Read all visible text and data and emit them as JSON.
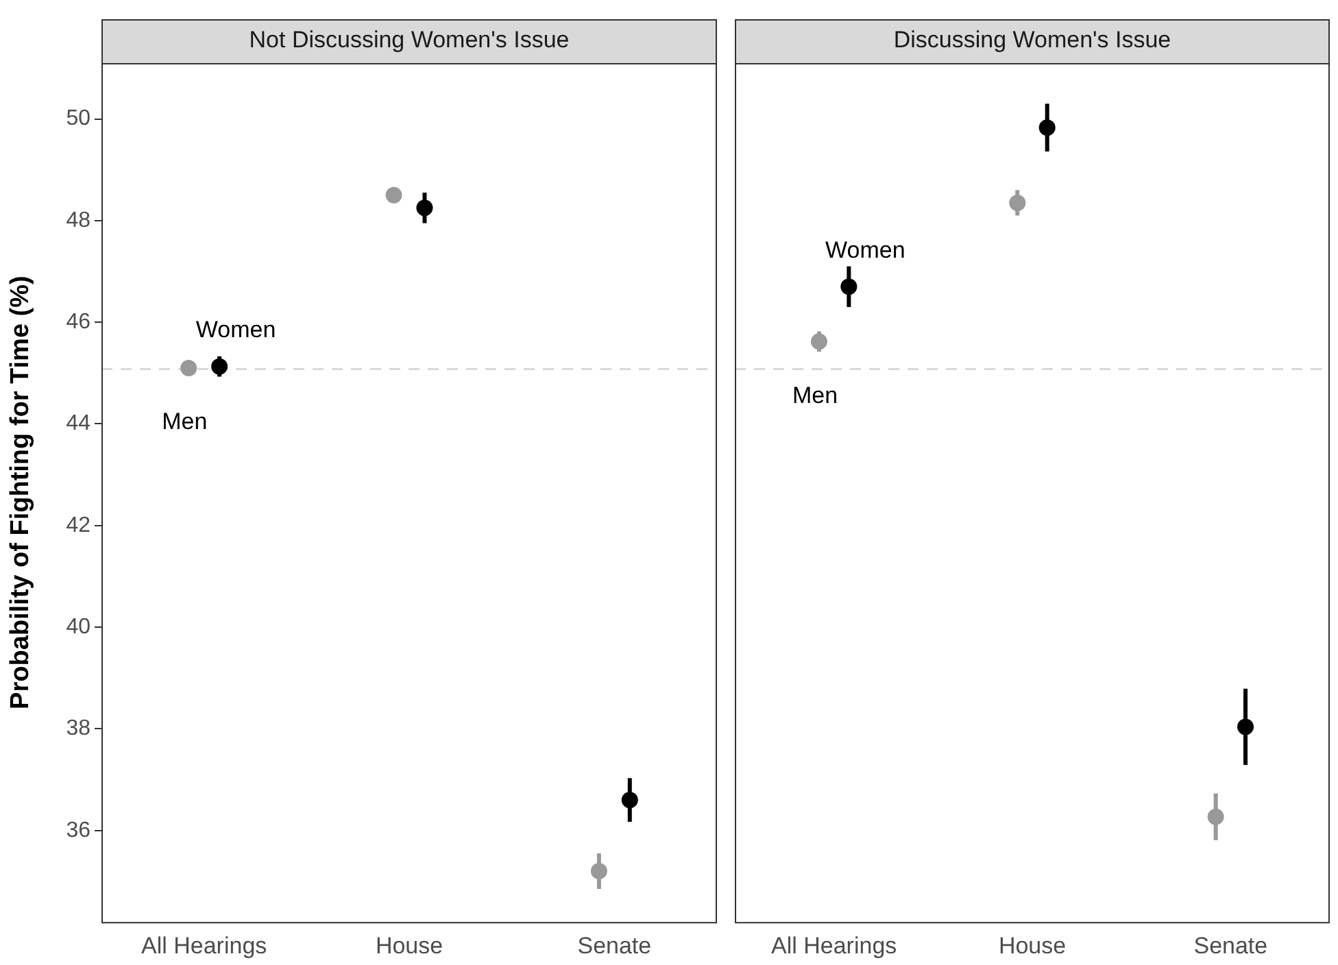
{
  "chart_data": [
    {
      "type": "scatter",
      "title": "Not Discussing Women's Issue",
      "ylabel": "Probability of Fighting for Time (%)",
      "categories": [
        "All Hearings",
        "House",
        "Senate"
      ],
      "marker": "circle",
      "series": [
        {
          "name": "Men",
          "color": "#999999",
          "values": [
            45.1,
            48.5,
            35.2
          ],
          "errors": [
            0.1,
            0.15,
            0.35
          ]
        },
        {
          "name": "Women",
          "color": "#000000",
          "values": [
            45.13,
            48.25,
            36.6
          ],
          "errors": [
            0.2,
            0.3,
            0.43
          ]
        }
      ],
      "ylim": [
        34.2,
        51.1
      ],
      "yticks": [
        36,
        38,
        40,
        42,
        44,
        46,
        48,
        50
      ],
      "grid": false,
      "legend": false,
      "ref_lines": [
        {
          "axis": "y",
          "value": 45.08,
          "color": "#d9d9d9",
          "line_style": "dashed"
        }
      ]
    },
    {
      "type": "scatter",
      "title": "Discussing Women's Issue",
      "categories": [
        "All Hearings",
        "House",
        "Senate"
      ],
      "marker": "circle",
      "series": [
        {
          "name": "Men",
          "color": "#999999",
          "values": [
            45.62,
            48.35,
            36.27
          ],
          "errors": [
            0.2,
            0.25,
            0.46
          ]
        },
        {
          "name": "Women",
          "color": "#000000",
          "values": [
            46.7,
            49.83,
            38.04
          ],
          "errors": [
            0.4,
            0.47,
            0.75
          ]
        }
      ],
      "ylim": [
        34.2,
        51.1
      ],
      "yticks": [
        36,
        38,
        40,
        42,
        44,
        46,
        48,
        50
      ],
      "grid": false,
      "legend": false,
      "tick_labels": "x",
      "ref_lines": [
        {
          "axis": "y",
          "value": 45.08,
          "color": "#d9d9d9",
          "line_style": "dashed"
        }
      ]
    }
  ]
}
